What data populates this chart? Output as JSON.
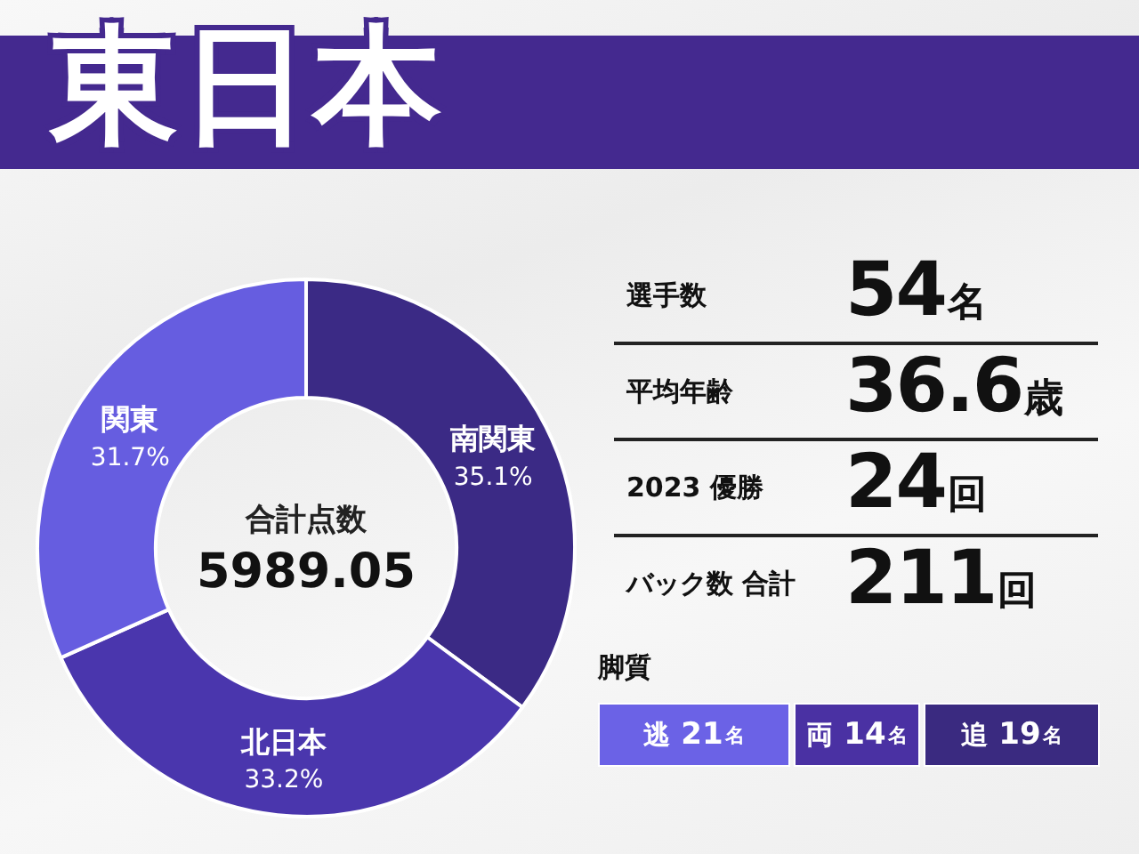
{
  "chart_data": [
    {
      "type": "donut",
      "title": "東日本",
      "categories": [
        "南関東",
        "北日本",
        "関東"
      ],
      "values": [
        35.1,
        33.2,
        31.7
      ],
      "colors": [
        "#3b2a85",
        "#4a36ad",
        "#665de0"
      ],
      "value_labels": [
        "35.1%",
        "33.2%",
        "31.7%"
      ],
      "annotations": [
        "合計点数",
        "5989.05"
      ]
    },
    {
      "type": "other",
      "categories": [
        "選手数",
        "平均年齢",
        "2023 優勝",
        "バック数 合計"
      ],
      "values": [
        54,
        36.6,
        24,
        211
      ],
      "value_labels": [
        "54名",
        "36.6歳",
        "24回",
        "211回"
      ]
    },
    {
      "type": "other",
      "title": "脚質",
      "categories": [
        "逃",
        "両",
        "追"
      ],
      "values": [
        21,
        14,
        19
      ],
      "value_labels": [
        "21名",
        "14名",
        "19名"
      ],
      "colors": [
        "#6b62e6",
        "#4a31a3",
        "#3a2a80"
      ]
    }
  ]
}
